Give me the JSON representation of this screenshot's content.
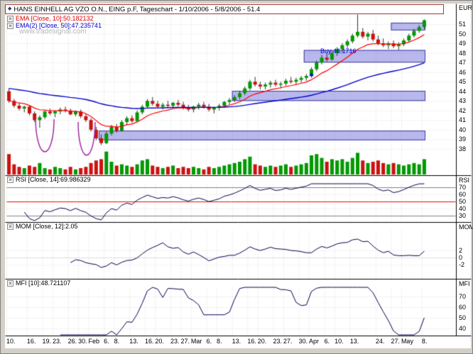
{
  "window": {
    "title": "HANS EINHELL AG VZO O.N., EING p.F, Tageschart - 1/10/2006 - 5/8/2006 - 51.4"
  },
  "icons": {
    "close": "×",
    "diamond": "◆"
  },
  "legend": {
    "ema1": "EMA [Close, 10]:50.182132",
    "ema2": "EMA(2) [Close, 50]:47.235741"
  },
  "watermark": "www.tradesignal.com",
  "annotations": {
    "buy_label": "Buy 46.1716"
  },
  "axis": {
    "unit": "EUR",
    "price_ticks": [
      51,
      50,
      49,
      48,
      47,
      46,
      45,
      44,
      43,
      42,
      41,
      40,
      39,
      38
    ]
  },
  "panels": {
    "rsi": {
      "label": "RSI [Close, 14]:69.986329",
      "axis_name": "RSI",
      "ticks": [
        70,
        60,
        50,
        40,
        30
      ]
    },
    "mom": {
      "label": "MOM [Close, 12]:2.05",
      "axis_name": "MOM",
      "ticks": [
        2,
        0,
        -2
      ]
    },
    "mfi": {
      "label": "MFI [10]:48.721107",
      "axis_name": "MFI",
      "ticks": [
        70,
        60,
        50,
        40
      ]
    }
  },
  "xaxis": {
    "labels": [
      {
        "text": "10.",
        "index": 0
      },
      {
        "text": "16.",
        "index": 4
      },
      {
        "text": "19.",
        "index": 7
      },
      {
        "text": "23.",
        "index": 9
      },
      {
        "text": "26.",
        "index": 12
      },
      {
        "text": "30.",
        "index": 14
      },
      {
        "text": "Feb",
        "index": 16
      },
      {
        "text": "6.",
        "index": 19
      },
      {
        "text": "8.",
        "index": 21
      },
      {
        "text": "13.",
        "index": 24
      },
      {
        "text": "16.",
        "index": 27
      },
      {
        "text": "20.",
        "index": 29
      },
      {
        "text": "23.",
        "index": 32
      },
      {
        "text": "27.",
        "index": 34
      },
      {
        "text": "Mar",
        "index": 36
      },
      {
        "text": "6.",
        "index": 39
      },
      {
        "text": "8.",
        "index": 41
      },
      {
        "text": "13.",
        "index": 44
      },
      {
        "text": "16.",
        "index": 47
      },
      {
        "text": "20.",
        "index": 49
      },
      {
        "text": "23.",
        "index": 52
      },
      {
        "text": "27.",
        "index": 54
      },
      {
        "text": "30.",
        "index": 57
      },
      {
        "text": "Apr",
        "index": 59
      },
      {
        "text": "6.",
        "index": 62
      },
      {
        "text": "10.",
        "index": 64
      },
      {
        "text": "13.",
        "index": 67
      },
      {
        "text": "24.",
        "index": 72
      },
      {
        "text": "27.",
        "index": 75
      },
      {
        "text": "May",
        "index": 77
      },
      {
        "text": "8.",
        "index": 81
      }
    ]
  },
  "colors": {
    "up": "#009900",
    "down": "#cc1111",
    "wick": "#303030",
    "ema_fast": "#ff0000",
    "ema_slow": "#0000cc",
    "zone_fill": "rgba(125,125,222,0.55)",
    "zone_border": "#3a3aa0",
    "indicator_line": "#00004f",
    "rsi_mid_line": "#ff0000",
    "rsi_band_line": "#808080",
    "grid": "#d8d8d8",
    "arc": "#a020a0",
    "separator": "#000000"
  },
  "chart_data": {
    "type": "candlestick",
    "title": "HANS EINHELL AG VZO O.N., EING p.F, Tageschart",
    "period": "1/10/2006 - 5/8/2006",
    "last_price": 51.4,
    "ylim": [
      37.5,
      52
    ],
    "legend_position": "top-left",
    "grid": true,
    "dates": [
      "1/10",
      "1/11",
      "1/12",
      "1/13",
      "1/16",
      "1/17",
      "1/18",
      "1/19",
      "1/20",
      "1/23",
      "1/24",
      "1/25",
      "1/26",
      "1/27",
      "1/30",
      "1/31",
      "2/1",
      "2/2",
      "2/3",
      "2/6",
      "2/7",
      "2/8",
      "2/9",
      "2/10",
      "2/13",
      "2/14",
      "2/15",
      "2/16",
      "2/17",
      "2/20",
      "2/21",
      "2/22",
      "2/23",
      "2/24",
      "2/27",
      "2/28",
      "3/1",
      "3/2",
      "3/3",
      "3/6",
      "3/7",
      "3/8",
      "3/9",
      "3/10",
      "3/13",
      "3/14",
      "3/15",
      "3/16",
      "3/17",
      "3/20",
      "3/21",
      "3/22",
      "3/23",
      "3/24",
      "3/27",
      "3/28",
      "3/29",
      "3/30",
      "3/31",
      "4/3",
      "4/4",
      "4/5",
      "4/6",
      "4/7",
      "4/10",
      "4/11",
      "4/12",
      "4/13",
      "4/18",
      "4/19",
      "4/20",
      "4/21",
      "4/24",
      "4/25",
      "4/26",
      "4/27",
      "4/28",
      "5/2",
      "5/3",
      "5/4",
      "5/5",
      "5/8"
    ],
    "ohlc": [
      [
        44.0,
        44.3,
        42.8,
        43.0
      ],
      [
        43.0,
        43.2,
        42.3,
        42.5
      ],
      [
        42.5,
        42.8,
        42.0,
        42.2
      ],
      [
        42.2,
        42.5,
        41.8,
        42.4
      ],
      [
        42.4,
        42.5,
        41.5,
        41.7
      ],
      [
        41.7,
        41.9,
        40.8,
        41.0
      ],
      [
        41.0,
        41.5,
        40.2,
        41.3
      ],
      [
        41.3,
        42.0,
        41.1,
        41.9
      ],
      [
        41.9,
        42.2,
        41.5,
        41.7
      ],
      [
        41.7,
        42.0,
        41.3,
        41.9
      ],
      [
        41.9,
        42.3,
        41.6,
        42.1
      ],
      [
        42.1,
        42.4,
        41.8,
        42.0
      ],
      [
        42.0,
        42.2,
        41.5,
        41.6
      ],
      [
        41.6,
        42.0,
        41.4,
        41.9
      ],
      [
        41.9,
        42.1,
        41.2,
        41.4
      ],
      [
        41.4,
        41.6,
        40.8,
        41.0
      ],
      [
        41.0,
        41.2,
        39.8,
        40.0
      ],
      [
        40.0,
        40.3,
        38.9,
        39.1
      ],
      [
        39.1,
        39.5,
        38.4,
        38.6
      ],
      [
        38.6,
        39.8,
        38.5,
        39.6
      ],
      [
        39.6,
        40.5,
        39.4,
        40.3
      ],
      [
        40.3,
        40.6,
        39.7,
        39.9
      ],
      [
        39.9,
        41.0,
        39.8,
        40.8
      ],
      [
        40.8,
        41.4,
        40.5,
        41.2
      ],
      [
        41.2,
        41.5,
        40.7,
        40.9
      ],
      [
        40.9,
        42.0,
        40.8,
        41.8
      ],
      [
        41.8,
        42.6,
        41.6,
        42.4
      ],
      [
        42.4,
        43.2,
        42.2,
        43.0
      ],
      [
        43.0,
        43.4,
        42.5,
        42.7
      ],
      [
        42.7,
        43.0,
        42.2,
        42.4
      ],
      [
        42.4,
        42.8,
        42.1,
        42.6
      ],
      [
        42.6,
        43.0,
        42.3,
        42.5
      ],
      [
        42.5,
        42.9,
        42.2,
        42.8
      ],
      [
        42.8,
        43.1,
        42.4,
        42.6
      ],
      [
        42.6,
        42.9,
        42.1,
        42.3
      ],
      [
        42.3,
        42.6,
        41.9,
        42.1
      ],
      [
        42.1,
        42.5,
        41.8,
        42.4
      ],
      [
        42.4,
        42.8,
        42.1,
        42.6
      ],
      [
        42.6,
        42.9,
        42.2,
        42.4
      ],
      [
        42.4,
        42.7,
        41.9,
        42.1
      ],
      [
        42.1,
        42.4,
        41.7,
        42.3
      ],
      [
        42.3,
        42.7,
        42.0,
        42.5
      ],
      [
        42.5,
        43.0,
        42.3,
        42.9
      ],
      [
        42.9,
        43.3,
        42.6,
        43.1
      ],
      [
        43.1,
        43.6,
        42.9,
        43.4
      ],
      [
        43.4,
        44.0,
        43.2,
        43.8
      ],
      [
        43.8,
        44.5,
        43.6,
        44.3
      ],
      [
        44.3,
        45.2,
        44.1,
        45.0
      ],
      [
        45.0,
        45.5,
        44.5,
        44.7
      ],
      [
        44.7,
        45.0,
        44.2,
        44.5
      ],
      [
        44.5,
        44.9,
        44.2,
        44.7
      ],
      [
        44.7,
        45.1,
        44.4,
        44.9
      ],
      [
        44.9,
        45.2,
        44.5,
        44.7
      ],
      [
        44.7,
        45.0,
        44.3,
        44.8
      ],
      [
        44.8,
        45.3,
        44.6,
        45.1
      ],
      [
        45.1,
        45.5,
        44.8,
        45.0
      ],
      [
        45.0,
        45.4,
        44.7,
        45.2
      ],
      [
        45.2,
        45.6,
        44.9,
        45.4
      ],
      [
        45.4,
        45.8,
        45.1,
        45.6
      ],
      [
        45.6,
        46.5,
        45.4,
        46.3
      ],
      [
        46.3,
        47.2,
        46.1,
        47.0
      ],
      [
        47.0,
        47.8,
        46.8,
        47.5
      ],
      [
        47.5,
        48.0,
        47.1,
        47.3
      ],
      [
        47.3,
        48.2,
        47.2,
        48.0
      ],
      [
        48.0,
        48.6,
        47.7,
        48.4
      ],
      [
        48.4,
        49.0,
        48.1,
        48.8
      ],
      [
        48.8,
        49.4,
        48.5,
        49.2
      ],
      [
        49.2,
        50.0,
        49.0,
        49.8
      ],
      [
        49.8,
        52.0,
        49.6,
        50.2
      ],
      [
        50.2,
        50.6,
        49.5,
        49.7
      ],
      [
        49.7,
        50.2,
        49.3,
        50.0
      ],
      [
        50.0,
        50.4,
        49.2,
        49.4
      ],
      [
        49.4,
        49.8,
        48.8,
        49.0
      ],
      [
        49.0,
        49.5,
        48.6,
        48.8
      ],
      [
        48.8,
        49.2,
        48.4,
        49.0
      ],
      [
        49.0,
        49.3,
        48.5,
        48.7
      ],
      [
        48.7,
        49.1,
        48.3,
        48.9
      ],
      [
        48.9,
        49.5,
        48.7,
        49.3
      ],
      [
        49.3,
        50.0,
        49.1,
        49.8
      ],
      [
        49.8,
        50.5,
        49.6,
        50.3
      ],
      [
        50.3,
        50.9,
        50.1,
        50.7
      ],
      [
        50.7,
        51.5,
        50.5,
        51.4
      ]
    ],
    "volume": [
      80,
      40,
      30,
      25,
      35,
      30,
      45,
      25,
      20,
      30,
      25,
      20,
      30,
      20,
      25,
      30,
      45,
      55,
      60,
      90,
      50,
      35,
      40,
      35,
      30,
      40,
      55,
      60,
      35,
      30,
      25,
      30,
      35,
      25,
      30,
      25,
      30,
      25,
      20,
      30,
      25,
      30,
      35,
      40,
      45,
      50,
      60,
      70,
      40,
      35,
      30,
      35,
      30,
      35,
      40,
      30,
      35,
      40,
      45,
      75,
      80,
      65,
      50,
      60,
      55,
      60,
      50,
      65,
      85,
      55,
      45,
      50,
      55,
      45,
      40,
      45,
      40,
      35,
      40,
      45,
      40,
      60
    ],
    "overlays": [
      {
        "name": "EMA",
        "params": "Close, 10",
        "value": 50.182132,
        "color": "#ff0000"
      },
      {
        "name": "EMA(2)",
        "params": "Close, 50",
        "value": 47.235741,
        "color": "#0000cc"
      }
    ],
    "indicators": [
      {
        "name": "RSI",
        "params": "Close, 14",
        "value": 69.986329,
        "ref_lines": [
          70,
          50,
          30
        ]
      },
      {
        "name": "MOM",
        "params": "Close, 12",
        "value": 2.05,
        "ref_lines": [
          2,
          0,
          -2
        ]
      },
      {
        "name": "MFI",
        "params": "10",
        "value": 48.721107,
        "ref_lines": [
          70,
          60,
          50,
          40
        ]
      }
    ],
    "zones": [
      {
        "start_index": 18,
        "price_top": 39.9,
        "price_bottom": 38.9
      },
      {
        "start_index": 44,
        "price_top": 44.05,
        "price_bottom": 43.0
      },
      {
        "start_index": 58,
        "price_top": 48.3,
        "price_bottom": 47.0
      },
      {
        "start_index": 75,
        "price_top": 51.15,
        "price_bottom": 50.35
      }
    ],
    "arcs": [
      {
        "center_index": 7.0,
        "price_top": 41.1,
        "price_bottom": 37.7,
        "half_width_bars": 1.8
      },
      {
        "center_index": 15.15,
        "price_top": 40.8,
        "price_bottom": 37.35,
        "half_width_bars": 1.66
      }
    ],
    "buy_signal": {
      "index": 59,
      "price": 46.1716
    }
  }
}
